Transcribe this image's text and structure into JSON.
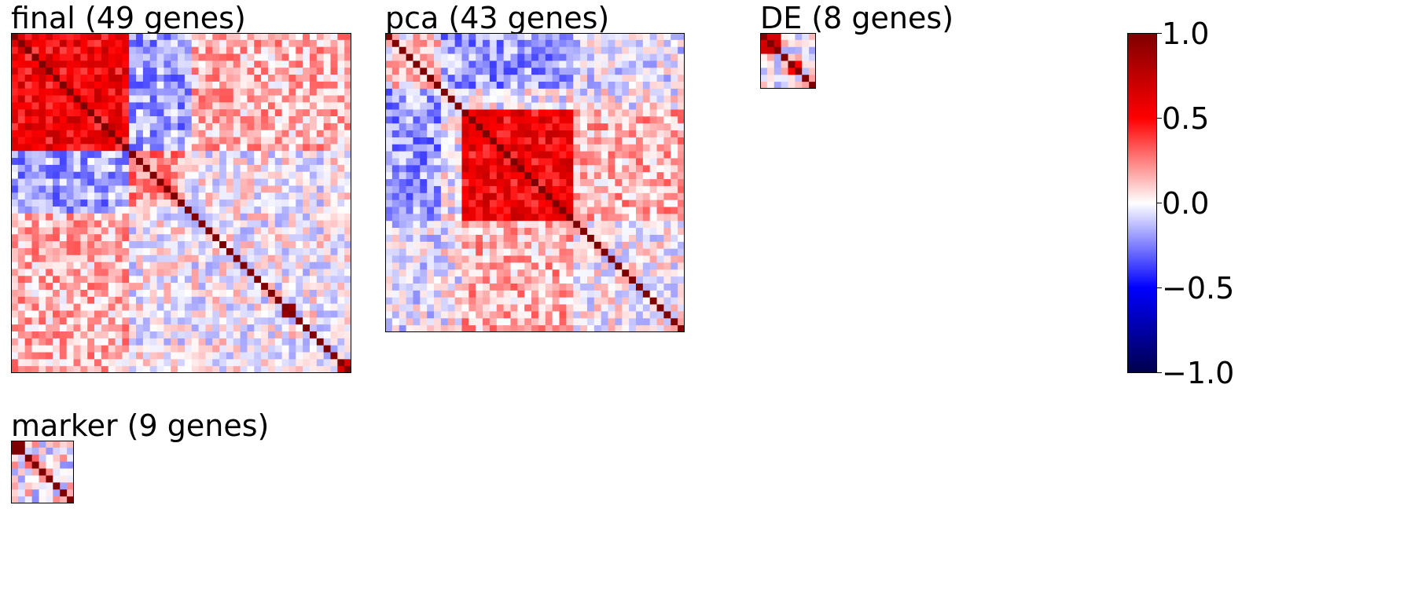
{
  "chart_data": [
    {
      "type": "heatmap",
      "title": "final (49 genes)",
      "n": 49,
      "blocks": [
        {
          "start": 0,
          "end": 17,
          "mean": 0.55
        },
        {
          "start": 17,
          "end": 25,
          "mean": 0.22
        },
        {
          "start": 39,
          "end": 41,
          "mean": 0.8
        },
        {
          "start": 47,
          "end": 49,
          "mean": 0.7
        }
      ],
      "cross": [
        {
          "a": [
            0,
            17
          ],
          "b": [
            17,
            26
          ],
          "mean": -0.18
        },
        {
          "a": [
            0,
            17
          ],
          "b": [
            26,
            49
          ],
          "mean": 0.14
        }
      ],
      "noise": 0.12,
      "diagonal": 1.0
    },
    {
      "type": "heatmap",
      "title": "pca (43 genes)",
      "n": 43,
      "blocks": [
        {
          "start": 0,
          "end": 8,
          "mean": 0.08
        },
        {
          "start": 11,
          "end": 27,
          "mean": 0.55
        }
      ],
      "cross": [
        {
          "a": [
            0,
            8
          ],
          "b": [
            8,
            27
          ],
          "mean": -0.2
        },
        {
          "a": [
            11,
            27
          ],
          "b": [
            27,
            43
          ],
          "mean": 0.15
        },
        {
          "a": [
            0,
            8
          ],
          "b": [
            27,
            43
          ],
          "mean": -0.05
        }
      ],
      "noise": 0.12,
      "diagonal": 1.0
    },
    {
      "type": "heatmap",
      "title": "DE (8 genes)",
      "n": 8,
      "blocks": [
        {
          "start": 0,
          "end": 3,
          "mean": 0.55
        },
        {
          "start": 4,
          "end": 6,
          "mean": 0.5
        }
      ],
      "cross": [],
      "noise": 0.12,
      "diagonal": 1.0
    },
    {
      "type": "heatmap",
      "title": "marker (9 genes)",
      "n": 9,
      "blocks": [
        {
          "start": 0,
          "end": 2,
          "mean": 0.85
        },
        {
          "start": 2,
          "end": 4,
          "mean": 0.4
        }
      ],
      "cross": [],
      "noise": 0.15,
      "diagonal": 1.0
    }
  ],
  "colorbar": {
    "min": -1.0,
    "max": 1.0,
    "ticks": [
      "1.0",
      "0.5",
      "0.0",
      "−0.5",
      "−1.0"
    ],
    "colormap": "seismic",
    "stops": [
      "#00004c",
      "#0000ff",
      "#ffffff",
      "#ff0000",
      "#7f0000"
    ]
  }
}
